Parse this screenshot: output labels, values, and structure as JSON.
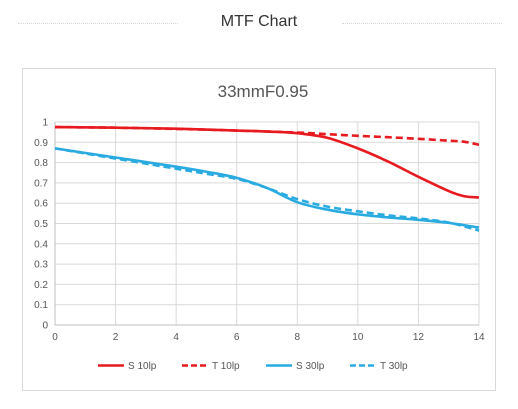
{
  "section": {
    "title": "MTF Chart"
  },
  "chart_data": {
    "type": "line",
    "title": "33mmF0.95",
    "xlabel": "",
    "ylabel": "",
    "xlim": [
      0,
      14
    ],
    "ylim": [
      0,
      1
    ],
    "x_ticks": [
      "0",
      "2",
      "4",
      "6",
      "8",
      "10",
      "12",
      "14"
    ],
    "y_ticks": [
      "0",
      "0.1",
      "0.2",
      "0.3",
      "0.4",
      "0.5",
      "0.6",
      "0.7",
      "0.8",
      "0.9",
      "1"
    ],
    "grid": true,
    "legend_position": "bottom",
    "series": [
      {
        "name": "S 10lp",
        "color": "#e8191f",
        "dash": "solid",
        "points": [
          [
            0,
            0.975
          ],
          [
            2,
            0.972
          ],
          [
            4,
            0.967
          ],
          [
            6,
            0.958
          ],
          [
            7,
            0.953
          ],
          [
            8,
            0.945
          ],
          [
            9,
            0.922
          ],
          [
            10,
            0.87
          ],
          [
            11,
            0.805
          ],
          [
            12,
            0.73
          ],
          [
            13,
            0.66
          ],
          [
            13.5,
            0.635
          ],
          [
            14,
            0.628
          ]
        ]
      },
      {
        "name": "T 10lp",
        "color": "#e8191f",
        "dash": "dashed",
        "points": [
          [
            0,
            0.975
          ],
          [
            2,
            0.972
          ],
          [
            4,
            0.966
          ],
          [
            6,
            0.958
          ],
          [
            8,
            0.948
          ],
          [
            9,
            0.94
          ],
          [
            10,
            0.932
          ],
          [
            11,
            0.925
          ],
          [
            12,
            0.917
          ],
          [
            13,
            0.908
          ],
          [
            13.5,
            0.903
          ],
          [
            14,
            0.888
          ]
        ]
      },
      {
        "name": "S 30lp",
        "color": "#29abe2",
        "dash": "solid",
        "points": [
          [
            0,
            0.87
          ],
          [
            2,
            0.825
          ],
          [
            4,
            0.78
          ],
          [
            5,
            0.755
          ],
          [
            6,
            0.725
          ],
          [
            7,
            0.675
          ],
          [
            8,
            0.605
          ],
          [
            9,
            0.568
          ],
          [
            10,
            0.545
          ],
          [
            11,
            0.53
          ],
          [
            12,
            0.518
          ],
          [
            13,
            0.503
          ],
          [
            14,
            0.48
          ]
        ]
      },
      {
        "name": "T 30lp",
        "color": "#29abe2",
        "dash": "dashed",
        "points": [
          [
            0,
            0.87
          ],
          [
            2,
            0.82
          ],
          [
            4,
            0.77
          ],
          [
            5,
            0.745
          ],
          [
            6,
            0.72
          ],
          [
            7,
            0.675
          ],
          [
            8,
            0.62
          ],
          [
            9,
            0.583
          ],
          [
            10,
            0.56
          ],
          [
            11,
            0.54
          ],
          [
            12,
            0.525
          ],
          [
            13,
            0.505
          ],
          [
            14,
            0.465
          ]
        ]
      }
    ]
  }
}
